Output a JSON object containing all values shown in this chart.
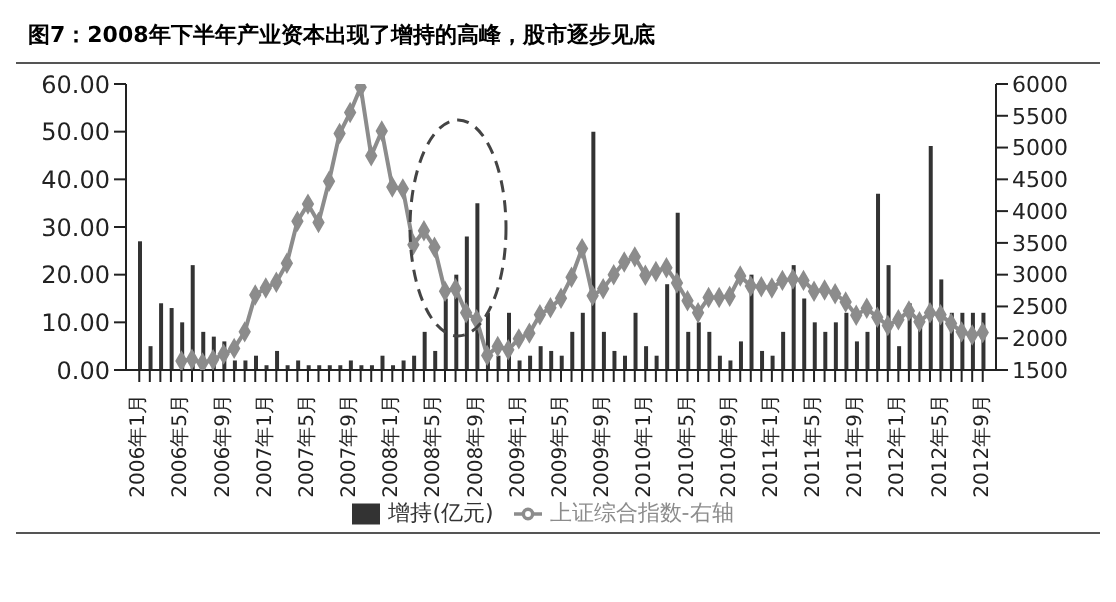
{
  "chart_data": {
    "type": "bar",
    "title": "图7：2008年下半年产业资本出现了增持的高峰，股市逐步见底",
    "categories": [
      "2006年1月",
      null,
      null,
      null,
      "2006年5月",
      null,
      null,
      null,
      "2006年9月",
      null,
      null,
      null,
      "2007年1月",
      null,
      null,
      null,
      "2007年5月",
      null,
      null,
      null,
      "2007年9月",
      null,
      null,
      null,
      "2008年1月",
      null,
      null,
      null,
      "2008年5月",
      null,
      null,
      null,
      "2008年9月",
      null,
      null,
      null,
      "2009年1月",
      null,
      null,
      null,
      "2009年5月",
      null,
      null,
      null,
      "2009年9月",
      null,
      null,
      null,
      "2010年1月",
      null,
      null,
      null,
      "2010年5月",
      null,
      null,
      null,
      "2010年9月",
      null,
      null,
      null,
      "2011年1月",
      null,
      null,
      null,
      "2011年5月",
      null,
      null,
      null,
      "2011年9月",
      null,
      null,
      null,
      "2012年1月",
      null,
      null,
      null,
      "2012年5月",
      null,
      null,
      null,
      "2012年9月"
    ],
    "series": [
      {
        "name": "增持(亿元)",
        "color": "#333333",
        "values": [
          27,
          5,
          14,
          13,
          10,
          22,
          8,
          7,
          6,
          2,
          2,
          3,
          1,
          4,
          1,
          2,
          1,
          1,
          1,
          1,
          2,
          1,
          1,
          3,
          1,
          2,
          3,
          8,
          4,
          15,
          20,
          28,
          35,
          12,
          3,
          12,
          2,
          3,
          5,
          4,
          3,
          8,
          12,
          50,
          8,
          4,
          3,
          12,
          5,
          3,
          18,
          33,
          8,
          10,
          8,
          3,
          2,
          6,
          20,
          4,
          3,
          8,
          22,
          15,
          10,
          8,
          10,
          12,
          6,
          8,
          37,
          22,
          5,
          14,
          10,
          47,
          19,
          12,
          12,
          12,
          12
        ]
      },
      {
        "name": "上证综合指数-右轴",
        "type": "line",
        "axis": "y2",
        "color": "#8c8c8c",
        "values": [
          null,
          null,
          null,
          null,
          1640,
          1670,
          1610,
          1660,
          1750,
          1840,
          2100,
          2680,
          2790,
          2880,
          3180,
          3840,
          4110,
          3820,
          4470,
          5220,
          5550,
          5950,
          4870,
          5260,
          4380,
          4350,
          3470,
          3690,
          3430,
          2740,
          2780,
          2400,
          2290,
          1730,
          1870,
          1820,
          1990,
          2080,
          2370,
          2480,
          2630,
          2960,
          3410,
          2670,
          2780,
          3000,
          3200,
          3280,
          2990,
          3050,
          3110,
          2870,
          2590,
          2400,
          2640,
          2640,
          2660,
          2980,
          2820,
          2810,
          2790,
          2910,
          2930,
          2910,
          2740,
          2760,
          2700,
          2570,
          2360,
          2470,
          2330,
          2200,
          2290,
          2430,
          2260,
          2400,
          2370,
          2230,
          2100,
          2050,
          2090
        ]
      }
    ],
    "ylim": [
      0,
      60
    ],
    "yticks": [
      {
        "value": 0,
        "label": "0.00"
      },
      {
        "value": 10,
        "label": "10.00"
      },
      {
        "value": 20,
        "label": "20.00"
      },
      {
        "value": 30,
        "label": "30.00"
      },
      {
        "value": 40,
        "label": "40.00"
      },
      {
        "value": 50,
        "label": "50.00"
      },
      {
        "value": 60,
        "label": "60.00"
      }
    ],
    "y2lim": [
      1500,
      6000
    ],
    "y2ticks": [
      1500,
      2000,
      2500,
      3000,
      3500,
      4000,
      4500,
      5000,
      5500,
      6000
    ],
    "legend": "bottom",
    "marker": "diamond",
    "grid": false
  }
}
